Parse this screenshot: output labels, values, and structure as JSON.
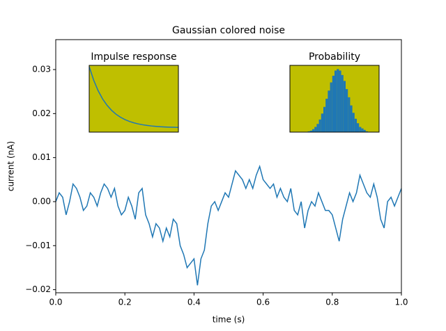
{
  "chart_data": [
    {
      "type": "line",
      "title": "Gaussian colored noise",
      "xlabel": "time (s)",
      "ylabel": "current (nA)",
      "color": "#1f77b4",
      "x": [
        0,
        0.01,
        0.02,
        0.03,
        0.04,
        0.05,
        0.06,
        0.07,
        0.08,
        0.09,
        0.1,
        0.11,
        0.12,
        0.13,
        0.14,
        0.15,
        0.16,
        0.17,
        0.18,
        0.19,
        0.2,
        0.21,
        0.22,
        0.23,
        0.24,
        0.25,
        0.26,
        0.27,
        0.28,
        0.29,
        0.3,
        0.31,
        0.32,
        0.33,
        0.34,
        0.35,
        0.36,
        0.37,
        0.38,
        0.39,
        0.4,
        0.41,
        0.42,
        0.43,
        0.44,
        0.45,
        0.46,
        0.47,
        0.48,
        0.49,
        0.5,
        0.51,
        0.52,
        0.53,
        0.54,
        0.55,
        0.56,
        0.57,
        0.58,
        0.59,
        0.6,
        0.61,
        0.62,
        0.63,
        0.64,
        0.65,
        0.66,
        0.67,
        0.68,
        0.69,
        0.7,
        0.71,
        0.72,
        0.73,
        0.74,
        0.75,
        0.76,
        0.77,
        0.78,
        0.79,
        0.8,
        0.81,
        0.82,
        0.83,
        0.84,
        0.85,
        0.86,
        0.87,
        0.88,
        0.89,
        0.9,
        0.91,
        0.92,
        0.93,
        0.94,
        0.95,
        0.96,
        0.97,
        0.98,
        0.99,
        1.0
      ],
      "values": [
        0.0,
        0.002,
        0.001,
        -0.003,
        0.0,
        0.004,
        0.003,
        0.001,
        -0.002,
        -0.001,
        0.002,
        0.001,
        -0.001,
        0.002,
        0.004,
        0.003,
        0.001,
        0.003,
        -0.001,
        -0.003,
        -0.002,
        0.001,
        -0.001,
        -0.004,
        0.002,
        0.003,
        -0.003,
        -0.005,
        -0.008,
        -0.005,
        -0.006,
        -0.009,
        -0.006,
        -0.008,
        -0.004,
        -0.005,
        -0.01,
        -0.012,
        -0.015,
        -0.014,
        -0.013,
        -0.019,
        -0.013,
        -0.011,
        -0.005,
        -0.001,
        0.0,
        -0.002,
        0.0,
        0.002,
        0.001,
        0.004,
        0.007,
        0.006,
        0.005,
        0.003,
        0.005,
        0.003,
        0.006,
        0.008,
        0.005,
        0.004,
        0.003,
        0.004,
        0.001,
        0.003,
        0.001,
        0.0,
        0.003,
        -0.002,
        -0.003,
        0.0,
        -0.006,
        -0.002,
        0.0,
        -0.001,
        0.002,
        0.0,
        -0.002,
        -0.002,
        -0.003,
        -0.006,
        -0.009,
        -0.004,
        -0.001,
        0.002,
        0.0,
        0.002,
        0.006,
        0.004,
        0.002,
        0.001,
        0.004,
        0.001,
        -0.004,
        -0.006,
        0.0,
        0.001,
        -0.001,
        0.001,
        0.003
      ],
      "xlim": [
        0,
        1
      ],
      "ylim": [
        -0.0207,
        0.0368
      ],
      "xticks": [
        {
          "value": 0,
          "label": "0.0"
        },
        {
          "value": 0.2,
          "label": "0.2"
        },
        {
          "value": 0.4,
          "label": "0.4"
        },
        {
          "value": 0.6,
          "label": "0.6"
        },
        {
          "value": 0.8,
          "label": "0.8"
        },
        {
          "value": 1,
          "label": "1.0"
        }
      ],
      "yticks": [
        {
          "value": -0.02,
          "label": "−0.02"
        },
        {
          "value": -0.01,
          "label": "−0.01"
        },
        {
          "value": 0,
          "label": "0.00"
        },
        {
          "value": 0.01,
          "label": "0.01"
        },
        {
          "value": 0.02,
          "label": "0.02"
        },
        {
          "value": 0.03,
          "label": "0.03"
        }
      ]
    },
    {
      "type": "line",
      "title": "Impulse response",
      "color": "#1f77b4",
      "facecolor": "#bfbf00",
      "x": [
        0,
        0.05,
        0.1,
        0.15,
        0.2,
        0.25,
        0.3,
        0.35,
        0.4,
        0.45,
        0.5,
        0.55,
        0.6,
        0.65,
        0.7,
        0.75,
        0.8,
        0.85,
        0.9,
        0.95,
        1.0
      ],
      "values": [
        1,
        0.779,
        0.607,
        0.472,
        0.368,
        0.287,
        0.223,
        0.174,
        0.135,
        0.105,
        0.082,
        0.064,
        0.05,
        0.039,
        0.03,
        0.024,
        0.018,
        0.014,
        0.011,
        0.009,
        0.007
      ],
      "xlim": [
        0,
        1
      ],
      "ylim": [
        -0.07,
        1.02
      ]
    },
    {
      "type": "histogram",
      "title": "Probability",
      "color": "#1f77b4",
      "facecolor": "#bfbf00",
      "bins": [
        -0.02,
        -0.019,
        -0.018,
        -0.017,
        -0.016,
        -0.015,
        -0.014,
        -0.013,
        -0.012,
        -0.011,
        -0.01,
        -0.009,
        -0.008,
        -0.007,
        -0.006,
        -0.005,
        -0.004,
        -0.003,
        -0.002,
        -0.001,
        0,
        0.001,
        0.002,
        0.003,
        0.004,
        0.005,
        0.006,
        0.007,
        0.008,
        0.009,
        0.01,
        0.011,
        0.012,
        0.013,
        0.014,
        0.015,
        0.016,
        0.017,
        0.018,
        0.019,
        0.02
      ],
      "counts": [
        0,
        0,
        0,
        0,
        0,
        0,
        0,
        0,
        1,
        2,
        4,
        7,
        11,
        17,
        25,
        34,
        45,
        56,
        67,
        76,
        83,
        85,
        83,
        77,
        69,
        58,
        47,
        36,
        26,
        18,
        12,
        7,
        5,
        3,
        1,
        0,
        0,
        0,
        0,
        0
      ],
      "xlim": [
        -0.02,
        0.02
      ],
      "ylim": [
        0,
        90
      ]
    }
  ]
}
